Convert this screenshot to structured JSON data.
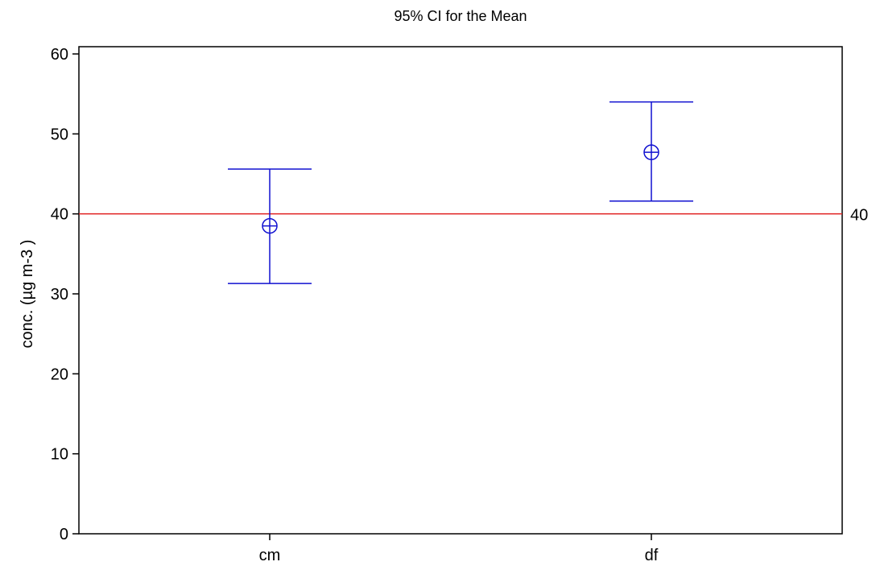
{
  "chart_data": {
    "type": "interval",
    "title": "95% CI for the Mean",
    "xlabel": "",
    "ylabel": "conc. (µg m-3 )",
    "categories": [
      "cm",
      "df"
    ],
    "series": [
      {
        "mean": [
          38.5,
          47.7
        ],
        "lower": [
          31.3,
          41.6
        ],
        "upper": [
          45.6,
          54.0
        ],
        "color": "#1010d0"
      }
    ],
    "ylim": [
      0,
      61
    ],
    "yticks": [
      0,
      10,
      20,
      30,
      40,
      50,
      60
    ],
    "reference_line": {
      "value": 40,
      "label": "40",
      "color": "#e02020"
    },
    "grid": false,
    "legend": "none"
  }
}
